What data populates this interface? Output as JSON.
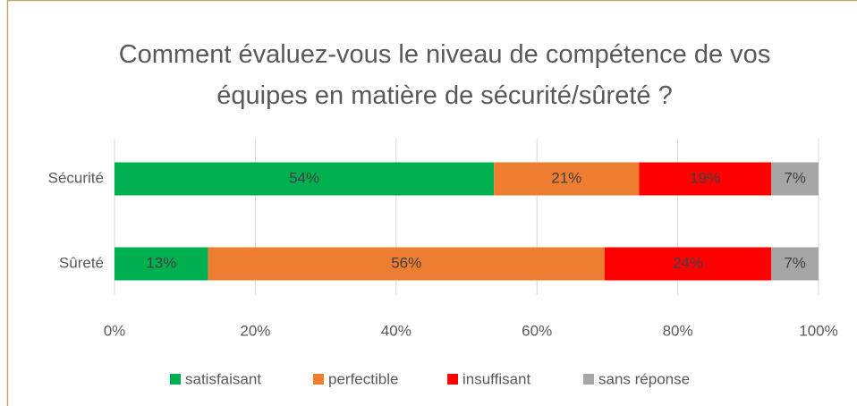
{
  "chart_data": {
    "type": "stacked-bar-horizontal",
    "title": "Comment évaluez-vous le niveau de compétence de vos équipes en matière de sécurité/sûreté ?",
    "categories": [
      "Sécurité",
      "Sûreté"
    ],
    "series": [
      {
        "name": "satisfaisant",
        "color": "#00b050",
        "values": [
          53.9,
          13.3
        ],
        "value_labels": [
          "54%",
          "13%"
        ]
      },
      {
        "name": "perfectible",
        "color": "#ed7d31",
        "values": [
          20.6,
          56.3
        ],
        "value_labels": [
          "21%",
          "56%"
        ]
      },
      {
        "name": "insuffisant",
        "color": "#ff0000",
        "values": [
          18.8,
          23.7
        ],
        "value_labels": [
          "19%",
          "24%"
        ]
      },
      {
        "name": "sans réponse",
        "color": "#a5a5a5",
        "values": [
          6.7,
          6.7
        ],
        "value_labels": [
          "7%",
          "7%"
        ]
      }
    ],
    "xlim": [
      0,
      100
    ],
    "xticks": [
      {
        "value": 0,
        "label": "0%"
      },
      {
        "value": 20,
        "label": "20%"
      },
      {
        "value": 40,
        "label": "40%"
      },
      {
        "value": 60,
        "label": "60%"
      },
      {
        "value": 80,
        "label": "80%"
      },
      {
        "value": 100,
        "label": "100%"
      }
    ],
    "grid": true,
    "legend": "bottom"
  }
}
